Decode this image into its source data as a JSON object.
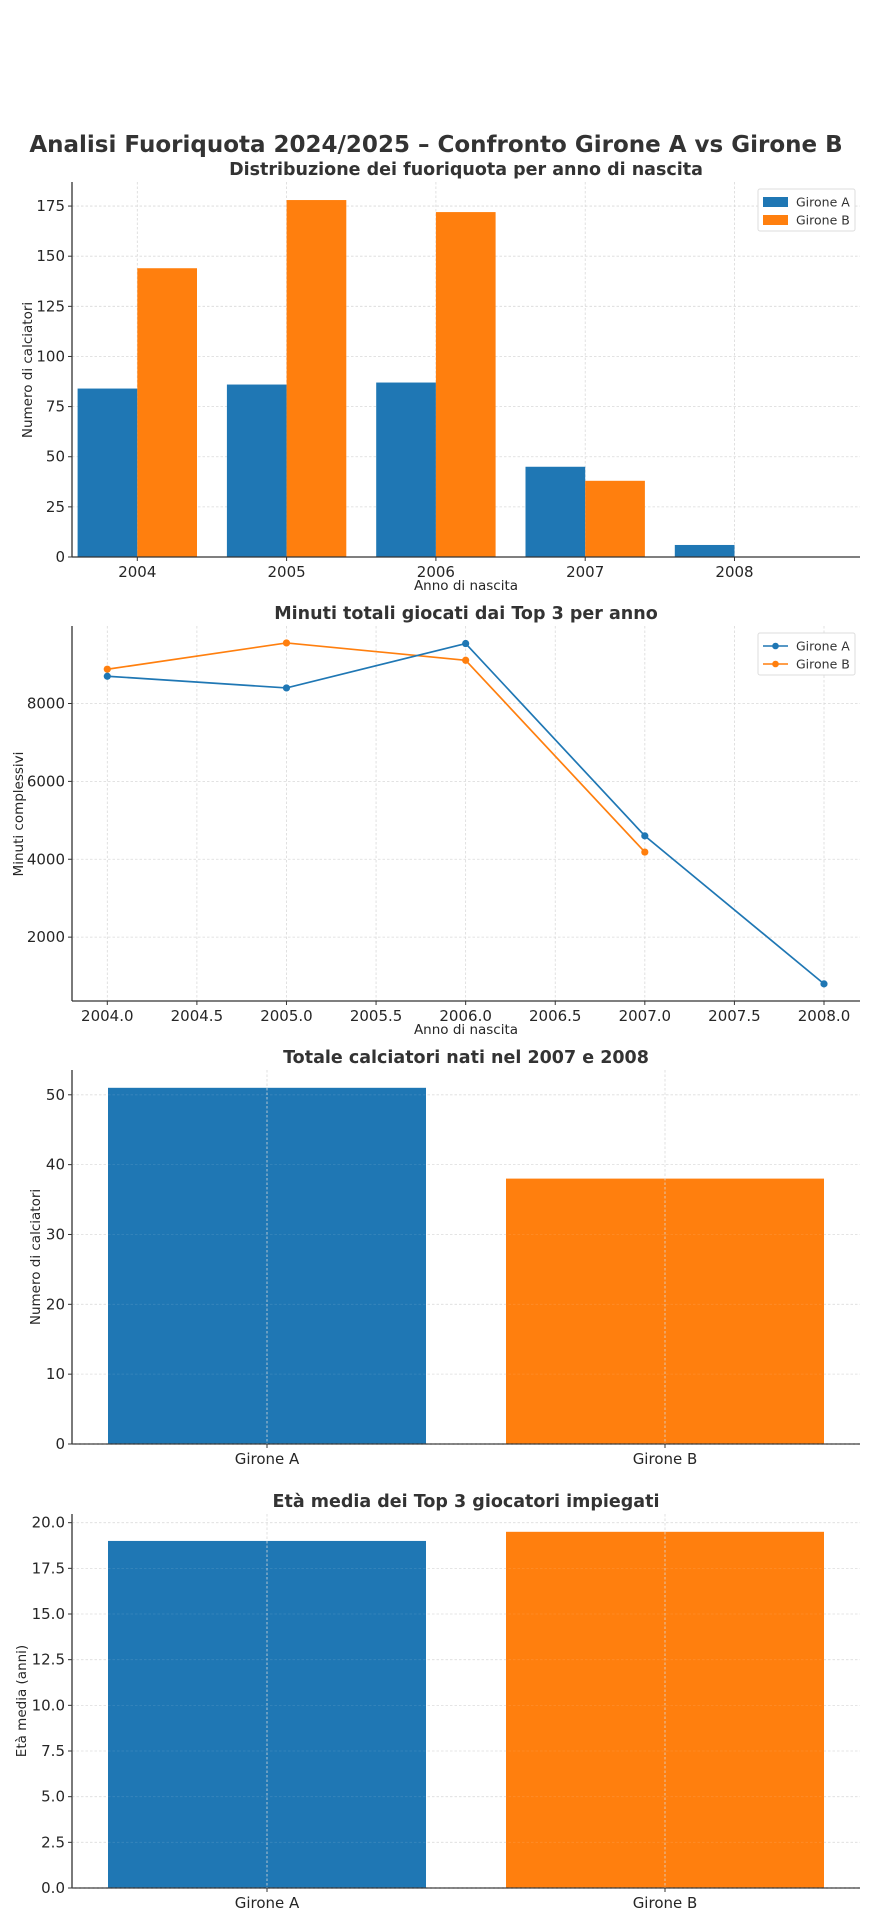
{
  "suptitle": "Analisi Fuoriquota 2024/2025 – Confronto Girone A vs Girone B",
  "colors": {
    "girone_a": "#1f77b4",
    "girone_b": "#ff7f0e"
  },
  "chart_data": [
    {
      "type": "bar",
      "title": "Distribuzione dei fuoriquota per anno di nascita",
      "xlabel": "Anno di nascita",
      "ylabel": "Numero di calciatori",
      "categories": [
        "2004",
        "2005",
        "2006",
        "2007",
        "2008"
      ],
      "series": [
        {
          "name": "Girone A",
          "values": [
            84,
            86,
            87,
            45,
            6
          ]
        },
        {
          "name": "Girone B",
          "values": [
            144,
            178,
            172,
            38,
            0
          ]
        }
      ],
      "ylim": [
        0,
        187
      ],
      "yticks": [
        0,
        25,
        50,
        75,
        100,
        125,
        150,
        175
      ],
      "ytick_labels": [
        "0",
        "25",
        "50",
        "75",
        "100",
        "125",
        "150",
        "175"
      ],
      "grid": true,
      "legend": "top-right"
    },
    {
      "type": "line",
      "title": "Minuti totali giocati dai Top 3 per anno",
      "xlabel": "Anno di nascita",
      "ylabel": "Minuti complessivi",
      "series": [
        {
          "name": "Girone A",
          "x": [
            2004,
            2005,
            2006,
            2007,
            2008
          ],
          "values": [
            8700,
            8400,
            9540,
            4600,
            800
          ]
        },
        {
          "name": "Girone B",
          "x": [
            2004,
            2005,
            2006,
            2007
          ],
          "values": [
            8880,
            9555,
            9110,
            4185
          ]
        }
      ],
      "xlim": [
        2003.8,
        2008.2
      ],
      "ylim": [
        360,
        9990
      ],
      "xticks": [
        2004.0,
        2004.5,
        2005.0,
        2005.5,
        2006.0,
        2006.5,
        2007.0,
        2007.5,
        2008.0
      ],
      "xtick_labels": [
        "2004.0",
        "2004.5",
        "2005.0",
        "2005.5",
        "2006.0",
        "2006.5",
        "2007.0",
        "2007.5",
        "2008.0"
      ],
      "yticks": [
        2000,
        4000,
        6000,
        8000
      ],
      "ytick_labels": [
        "2000",
        "4000",
        "6000",
        "8000"
      ],
      "grid": true,
      "legend": "top-right"
    },
    {
      "type": "bar",
      "title": "Totale calciatori nati nel 2007 e 2008",
      "xlabel": "",
      "ylabel": "Numero di calciatori",
      "categories": [
        "Girone A",
        "Girone B"
      ],
      "values": [
        51,
        38
      ],
      "ylim": [
        0,
        53.55
      ],
      "yticks": [
        0,
        10,
        20,
        30,
        40,
        50
      ],
      "ytick_labels": [
        "0",
        "10",
        "20",
        "30",
        "40",
        "50"
      ],
      "grid": true
    },
    {
      "type": "bar",
      "title": "Età media dei Top 3 giocatori impiegati",
      "xlabel": "",
      "ylabel": "Età media (anni)",
      "categories": [
        "Girone A",
        "Girone B"
      ],
      "values": [
        19.0,
        19.5
      ],
      "ylim": [
        0,
        20.475
      ],
      "yticks": [
        0,
        2.5,
        5,
        7.5,
        10,
        12.5,
        15,
        17.5,
        20
      ],
      "ytick_labels": [
        "0.0",
        "2.5",
        "5.0",
        "7.5",
        "10.0",
        "12.5",
        "15.0",
        "17.5",
        "20.0"
      ],
      "grid": true
    }
  ]
}
